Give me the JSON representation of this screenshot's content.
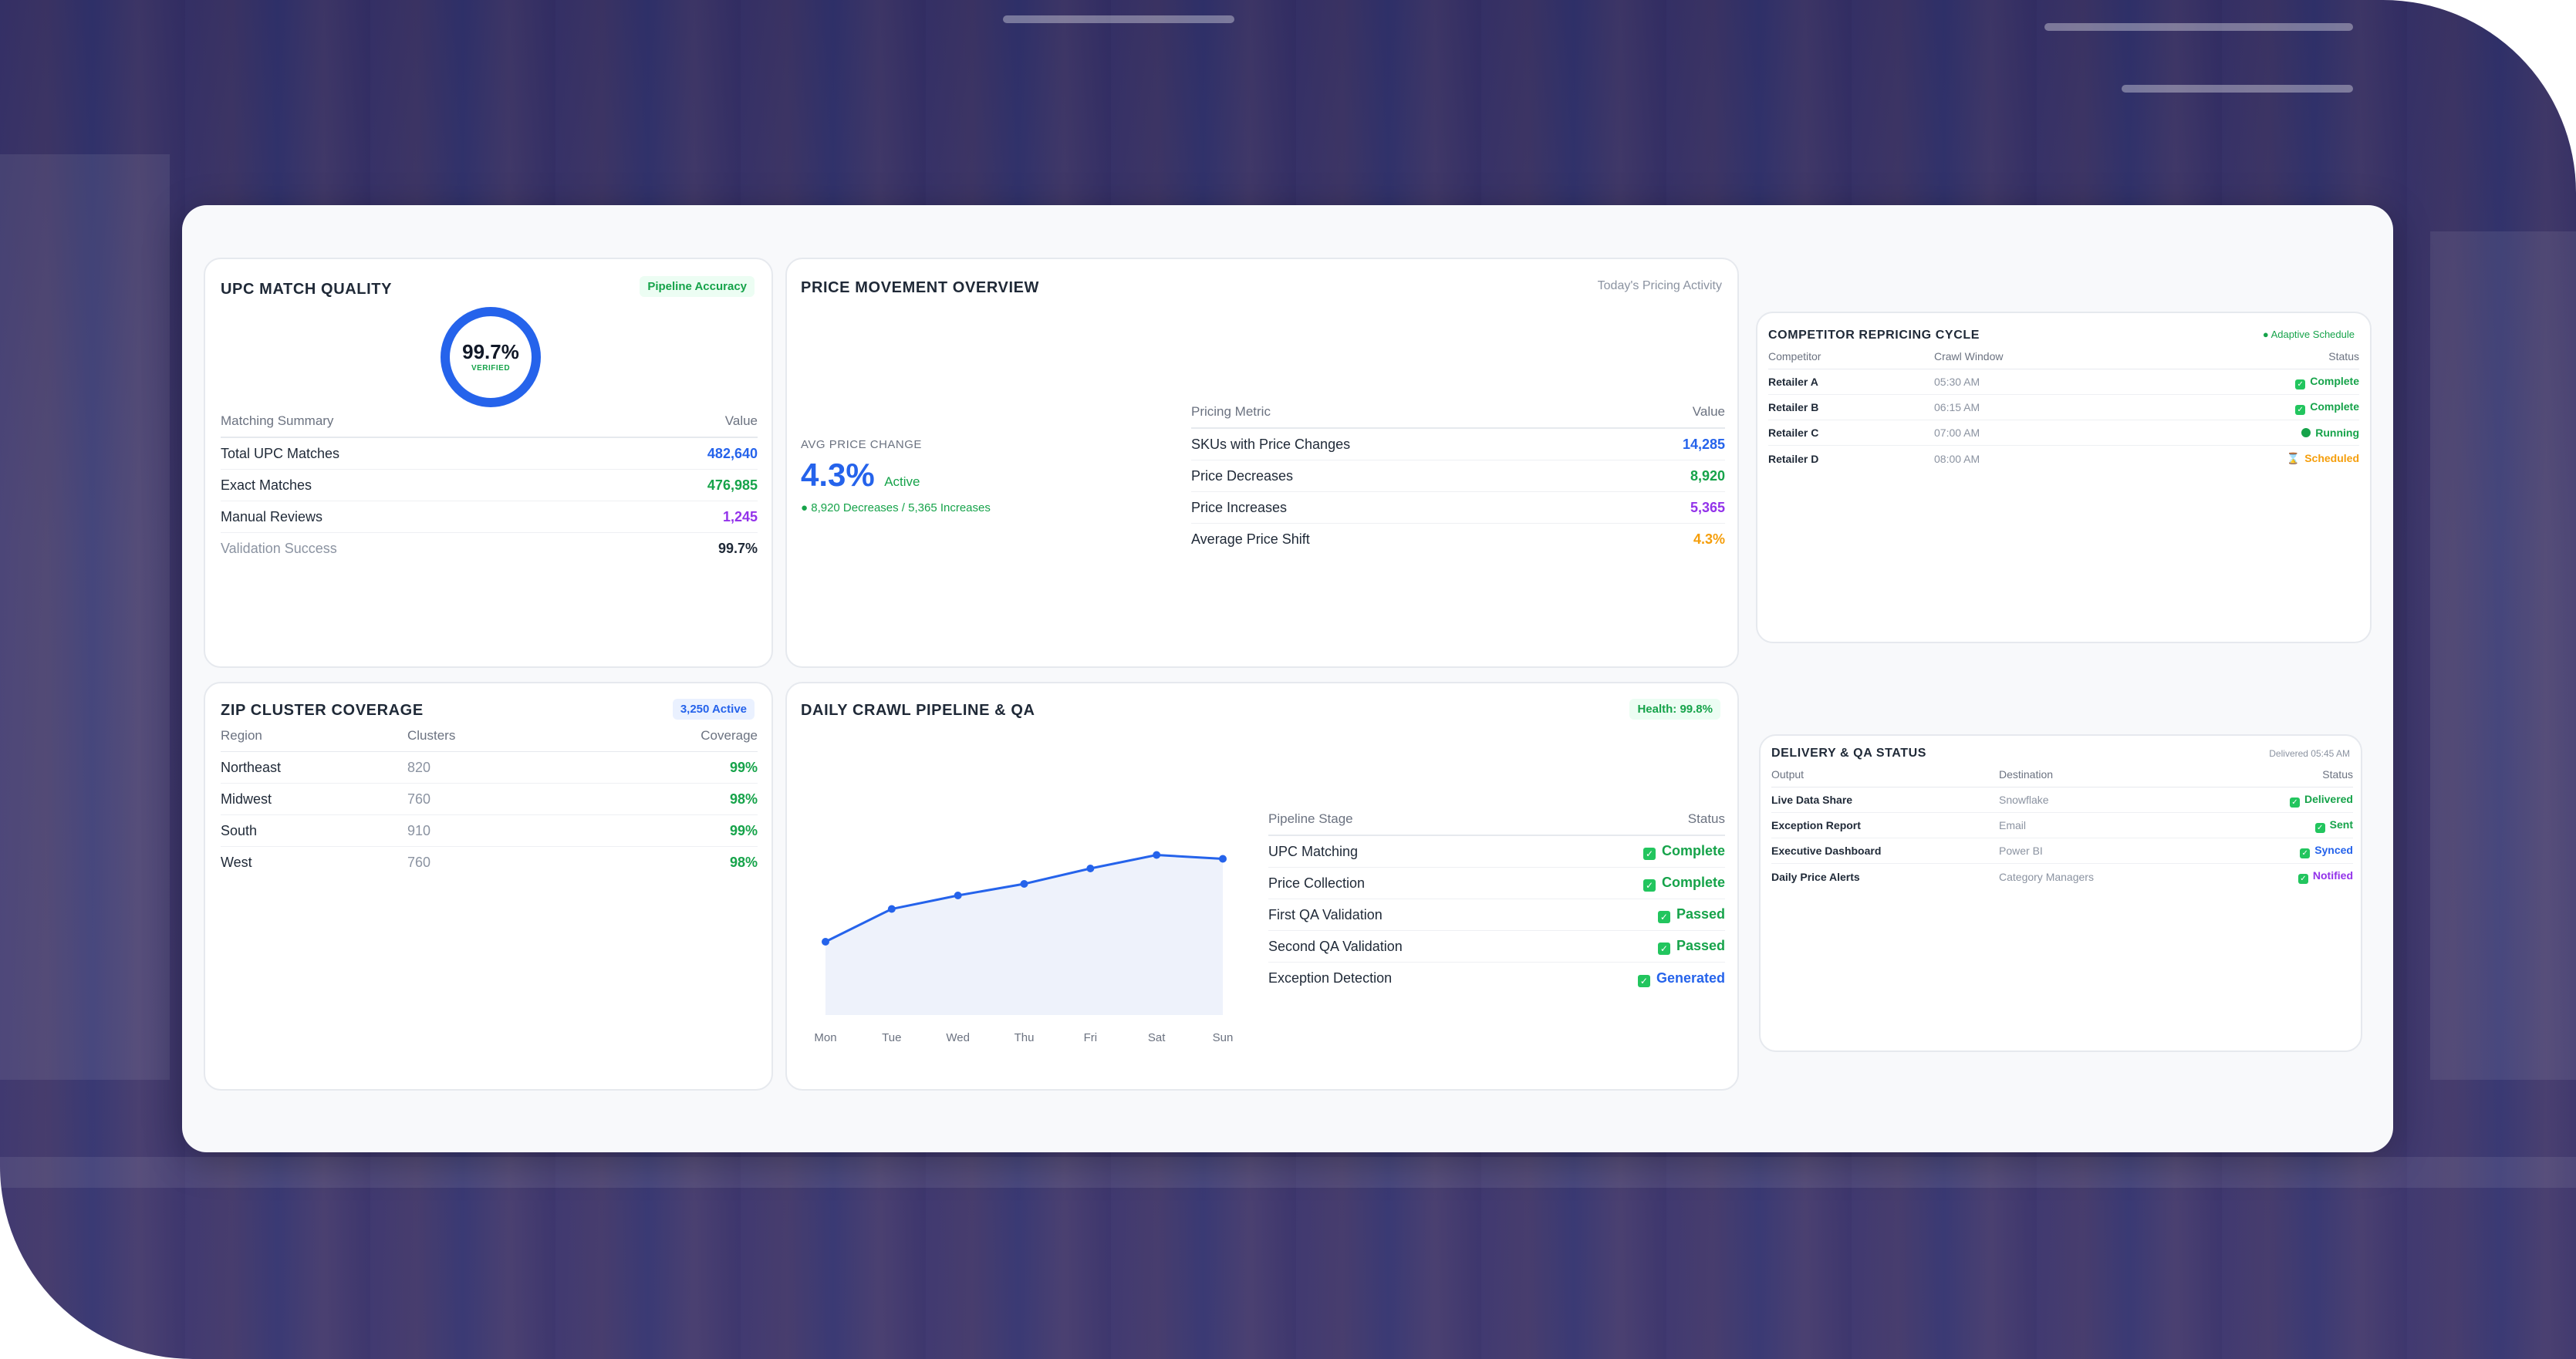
{
  "upc": {
    "title": "UPC MATCH QUALITY",
    "badge": "Pipeline Accuracy",
    "ring_value": "99.7%",
    "ring_label": "VERIFIED",
    "col1": "Matching Summary",
    "col2": "Value",
    "rows": [
      {
        "label": "Total UPC Matches",
        "value": "482,640"
      },
      {
        "label": "Exact Matches",
        "value": "476,985"
      },
      {
        "label": "Manual Reviews",
        "value": "1,245"
      },
      {
        "label": "Validation Success",
        "value": "99.7%"
      }
    ]
  },
  "price": {
    "title": "PRICE MOVEMENT OVERVIEW",
    "subtitle": "Today's Pricing Activity",
    "avg_label": "AVG PRICE CHANGE",
    "avg_value": "4.3%",
    "avg_status": "Active",
    "avg_note": "● 8,920 Decreases / 5,365 Increases",
    "col1": "Pricing Metric",
    "col2": "Value",
    "rows": [
      {
        "label": "SKUs with Price Changes",
        "value": "14,285"
      },
      {
        "label": "Price Decreases",
        "value": "8,920"
      },
      {
        "label": "Price Increases",
        "value": "5,365"
      },
      {
        "label": "Average Price Shift",
        "value": "4.3%"
      }
    ]
  },
  "competitor": {
    "title": "COMPETITOR REPRICING CYCLE",
    "badge": "● Adaptive Schedule",
    "cols": [
      "Competitor",
      "Crawl Window",
      "Status"
    ],
    "rows": [
      {
        "name": "Retailer A",
        "time": "05:30 AM",
        "status": "Complete"
      },
      {
        "name": "Retailer B",
        "time": "06:15 AM",
        "status": "Complete"
      },
      {
        "name": "Retailer C",
        "time": "07:00 AM",
        "status": "Running"
      },
      {
        "name": "Retailer D",
        "time": "08:00 AM",
        "status": "Scheduled"
      }
    ]
  },
  "zip": {
    "title": "ZIP CLUSTER COVERAGE",
    "badge": "3,250 Active",
    "cols": [
      "Region",
      "Clusters",
      "Coverage"
    ],
    "rows": [
      {
        "region": "Northeast",
        "clusters": "820",
        "coverage": "99%"
      },
      {
        "region": "Midwest",
        "clusters": "760",
        "coverage": "98%"
      },
      {
        "region": "South",
        "clusters": "910",
        "coverage": "99%"
      },
      {
        "region": "West",
        "clusters": "760",
        "coverage": "98%"
      }
    ]
  },
  "crawl": {
    "title": "DAILY CRAWL PIPELINE & QA",
    "badge": "Health: 99.8%",
    "col1": "Pipeline Stage",
    "col2": "Status",
    "rows": [
      {
        "stage": "UPC Matching",
        "status": "Complete"
      },
      {
        "stage": "Price Collection",
        "status": "Complete"
      },
      {
        "stage": "First QA Validation",
        "status": "Passed"
      },
      {
        "stage": "Second QA Validation",
        "status": "Passed"
      },
      {
        "stage": "Exception Detection",
        "status": "Generated"
      }
    ]
  },
  "chart_data": {
    "type": "area",
    "categories": [
      "Mon",
      "Tue",
      "Wed",
      "Thu",
      "Fri",
      "Sat",
      "Sun"
    ],
    "values": [
      38,
      55,
      62,
      68,
      76,
      83,
      81
    ],
    "ylim": [
      0,
      100
    ],
    "grid": false
  },
  "delivery": {
    "title": "DELIVERY & QA STATUS",
    "subtitle": "Delivered 05:45 AM",
    "cols": [
      "Output",
      "Destination",
      "Status"
    ],
    "rows": [
      {
        "output": "Live Data Share",
        "dest": "Snowflake",
        "status": "Delivered"
      },
      {
        "output": "Exception Report",
        "dest": "Email",
        "status": "Sent"
      },
      {
        "output": "Executive Dashboard",
        "dest": "Power BI",
        "status": "Synced"
      },
      {
        "output": "Daily Price Alerts",
        "dest": "Category Managers",
        "status": "Notified"
      }
    ]
  }
}
